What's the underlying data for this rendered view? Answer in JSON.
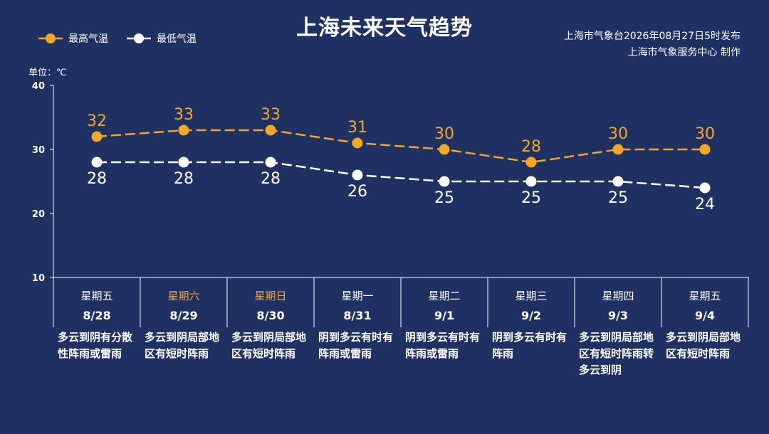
{
  "header": {
    "title": "上海未来天气趋势",
    "issuer_line1": "上海市气象台2026年08月27日5时发布",
    "issuer_line2": "上海市气象服务中心  制作",
    "unit": "单位：℃"
  },
  "colors": {
    "background": "#1f3062",
    "high": "#f5a623",
    "low": "#ffffff",
    "weekend": "#f5a623"
  },
  "chart_data": {
    "type": "line",
    "categories": [
      "8/28",
      "8/29",
      "8/30",
      "8/31",
      "9/1",
      "9/2",
      "9/3",
      "9/4"
    ],
    "series": [
      {
        "name": "最高气温",
        "values": [
          32,
          33,
          33,
          31,
          30,
          28,
          30,
          30
        ]
      },
      {
        "name": "最低气温",
        "values": [
          28,
          28,
          28,
          26,
          25,
          25,
          25,
          24
        ]
      }
    ],
    "ylim": [
      10,
      40
    ],
    "yticks": [
      10,
      20,
      30,
      40
    ],
    "ylabel": "单位：℃",
    "legend_position": "top-left",
    "grid": false
  },
  "days": [
    {
      "weekday": "星期五",
      "date": "8/28",
      "weekend": false,
      "condition": "多云到阴有分散性阵雨或雷雨"
    },
    {
      "weekday": "星期六",
      "date": "8/29",
      "weekend": true,
      "condition": "多云到阴局部地区有短时阵雨"
    },
    {
      "weekday": "星期日",
      "date": "8/30",
      "weekend": true,
      "condition": "多云到阴局部地区有短时阵雨"
    },
    {
      "weekday": "星期一",
      "date": "8/31",
      "weekend": false,
      "condition": "阴到多云有时有阵雨或雷雨"
    },
    {
      "weekday": "星期二",
      "date": "9/1",
      "weekend": false,
      "condition": "阴到多云有时有阵雨或雷雨"
    },
    {
      "weekday": "星期三",
      "date": "9/2",
      "weekend": false,
      "condition": "阴到多云有时有阵雨"
    },
    {
      "weekday": "星期四",
      "date": "9/3",
      "weekend": false,
      "condition": "多云到阴局部地区有短时阵雨转多云到阴"
    },
    {
      "weekday": "星期五",
      "date": "9/4",
      "weekend": false,
      "condition": "多云到阴局部地区有短时阵雨"
    }
  ]
}
